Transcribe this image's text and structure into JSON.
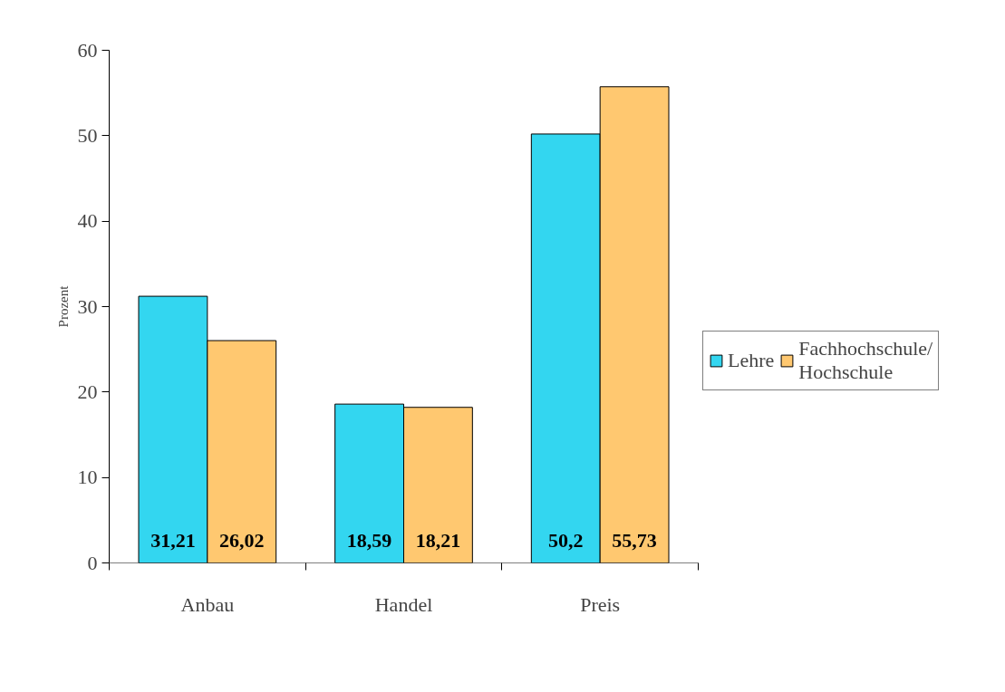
{
  "chart_data": {
    "type": "bar",
    "ylabel": "Prozent",
    "categories": [
      "Anbau",
      "Handel",
      "Preis"
    ],
    "series": [
      {
        "name": "Lehre",
        "color": "#33d6f0",
        "values": [
          31.21,
          18.59,
          50.2
        ]
      },
      {
        "name": "Fachhochschule/Hochschule",
        "color": "#ffc870",
        "values": [
          26.02,
          18.21,
          55.73
        ]
      }
    ],
    "value_labels": [
      [
        "31,21",
        "18,59",
        "50,2"
      ],
      [
        "26,02",
        "18,21",
        "55,73"
      ]
    ],
    "ylim": [
      0,
      60
    ],
    "yticks": [
      0,
      10,
      20,
      30,
      40,
      50,
      60
    ],
    "grid": false,
    "legend": "right"
  }
}
